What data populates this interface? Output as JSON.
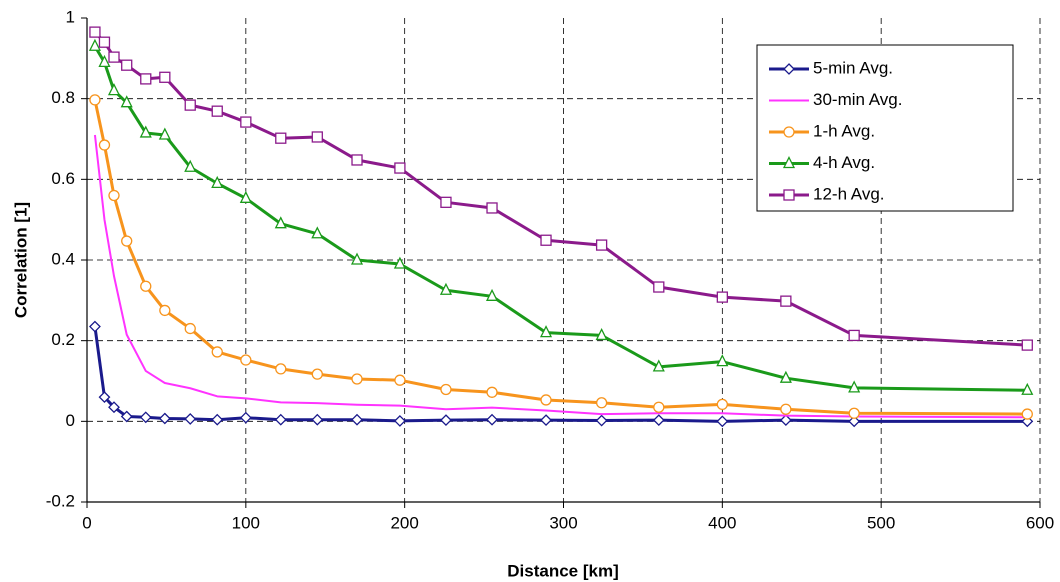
{
  "chart_data": {
    "type": "line",
    "x_label": "Distance  [km]",
    "y_label": "Correlation [1]",
    "x": [
      5,
      11,
      17,
      25,
      37,
      49,
      65,
      82,
      100,
      122,
      145,
      170,
      197,
      226,
      255,
      289,
      324,
      360,
      400,
      440,
      483,
      592
    ],
    "series": [
      {
        "name": "5-min Avg.",
        "color": "#1a1a8c",
        "marker": "diamond",
        "values": [
          0.235,
          0.06,
          0.035,
          0.012,
          0.01,
          0.007,
          0.006,
          0.004,
          0.009,
          0.004,
          0.004,
          0.004,
          0.001,
          0.003,
          0.004,
          0.003,
          0.002,
          0.003,
          0.0,
          0.003,
          0.0,
          0.0
        ]
      },
      {
        "name": "30-min Avg.",
        "color": "#ff33ff",
        "marker": "none",
        "values": [
          0.71,
          0.5,
          0.36,
          0.215,
          0.125,
          0.095,
          0.082,
          0.062,
          0.057,
          0.047,
          0.045,
          0.041,
          0.039,
          0.03,
          0.034,
          0.027,
          0.018,
          0.02,
          0.02,
          0.014,
          0.012,
          0.01
        ]
      },
      {
        "name": "1-h Avg.",
        "color": "#f7941d",
        "marker": "circle",
        "values": [
          0.797,
          0.685,
          0.56,
          0.447,
          0.335,
          0.275,
          0.23,
          0.172,
          0.152,
          0.13,
          0.117,
          0.105,
          0.102,
          0.079,
          0.072,
          0.053,
          0.046,
          0.035,
          0.042,
          0.03,
          0.02,
          0.018
        ]
      },
      {
        "name": "4-h Avg.",
        "color": "#1a9a1a",
        "marker": "triangle",
        "values": [
          0.93,
          0.89,
          0.82,
          0.79,
          0.715,
          0.71,
          0.63,
          0.59,
          0.553,
          0.49,
          0.465,
          0.4,
          0.39,
          0.325,
          0.31,
          0.22,
          0.213,
          0.135,
          0.148,
          0.107,
          0.083,
          0.077
        ]
      },
      {
        "name": "12-h Avg.",
        "color": "#8b1a8b",
        "marker": "square",
        "values": [
          0.965,
          0.94,
          0.903,
          0.883,
          0.849,
          0.853,
          0.784,
          0.769,
          0.742,
          0.702,
          0.705,
          0.648,
          0.628,
          0.543,
          0.529,
          0.449,
          0.437,
          0.333,
          0.308,
          0.298,
          0.213,
          0.189
        ]
      }
    ],
    "xlim": [
      0,
      600
    ],
    "xticks": [
      0,
      100,
      200,
      300,
      400,
      500,
      600
    ],
    "ylim": [
      -0.2,
      1
    ],
    "yticks": [
      -0.2,
      0,
      0.2,
      0.4,
      0.6,
      0.8,
      1
    ],
    "grid": true,
    "legend": "upper right"
  }
}
